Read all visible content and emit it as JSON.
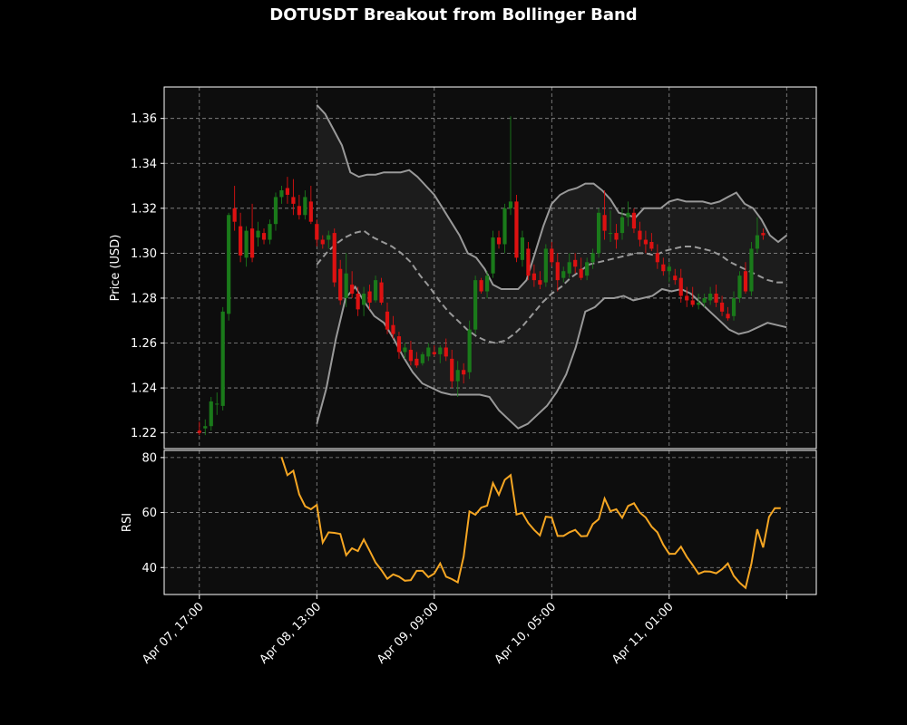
{
  "chart_data": {
    "type": "candlestick",
    "title": "DOTUSDT Breakout from Bollinger Band",
    "theme": {
      "background": "#000000",
      "panel": "#0d0d0d",
      "grid": "#bbbbbb",
      "up": "#1a7a1a",
      "down": "#dd1111",
      "band": "#999999",
      "rsi": "#f5a623"
    },
    "price_panel": {
      "ylabel": "Price (USD)",
      "ylim": [
        1.213,
        1.374
      ],
      "yticks": [
        "1.22",
        "1.24",
        "1.26",
        "1.28",
        "1.30",
        "1.32",
        "1.34",
        "1.36"
      ],
      "candles": [
        [
          1.221,
          1.225,
          1.219,
          1.22
        ],
        [
          1.222,
          1.226,
          1.219,
          1.223
        ],
        [
          1.223,
          1.236,
          1.221,
          1.234
        ],
        [
          1.233,
          1.238,
          1.228,
          1.233
        ],
        [
          1.232,
          1.276,
          1.23,
          1.274
        ],
        [
          1.273,
          1.318,
          1.27,
          1.317
        ],
        [
          1.32,
          1.33,
          1.31,
          1.314
        ],
        [
          1.312,
          1.318,
          1.296,
          1.299
        ],
        [
          1.298,
          1.312,
          1.294,
          1.31
        ],
        [
          1.311,
          1.322,
          1.296,
          1.298
        ],
        [
          1.307,
          1.314,
          1.303,
          1.31
        ],
        [
          1.309,
          1.311,
          1.304,
          1.306
        ],
        [
          1.306,
          1.315,
          1.304,
          1.313
        ],
        [
          1.313,
          1.327,
          1.31,
          1.325
        ],
        [
          1.325,
          1.33,
          1.322,
          1.328
        ],
        [
          1.329,
          1.334,
          1.322,
          1.326
        ],
        [
          1.325,
          1.333,
          1.317,
          1.322
        ],
        [
          1.321,
          1.326,
          1.315,
          1.317
        ],
        [
          1.317,
          1.328,
          1.315,
          1.325
        ],
        [
          1.323,
          1.33,
          1.313,
          1.314
        ],
        [
          1.313,
          1.315,
          1.303,
          1.306
        ],
        [
          1.306,
          1.308,
          1.302,
          1.304
        ],
        [
          1.306,
          1.31,
          1.302,
          1.308
        ],
        [
          1.309,
          1.311,
          1.285,
          1.287
        ],
        [
          1.293,
          1.297,
          1.277,
          1.279
        ],
        [
          1.28,
          1.3,
          1.276,
          1.291
        ],
        [
          1.286,
          1.292,
          1.28,
          1.282
        ],
        [
          1.282,
          1.285,
          1.272,
          1.275
        ],
        [
          1.277,
          1.285,
          1.272,
          1.282
        ],
        [
          1.283,
          1.286,
          1.275,
          1.278
        ],
        [
          1.279,
          1.29,
          1.278,
          1.288
        ],
        [
          1.287,
          1.289,
          1.277,
          1.278
        ],
        [
          1.274,
          1.278,
          1.264,
          1.266
        ],
        [
          1.268,
          1.272,
          1.262,
          1.264
        ],
        [
          1.263,
          1.265,
          1.253,
          1.256
        ],
        [
          1.256,
          1.26,
          1.253,
          1.258
        ],
        [
          1.257,
          1.261,
          1.25,
          1.252
        ],
        [
          1.253,
          1.256,
          1.249,
          1.25
        ],
        [
          1.251,
          1.256,
          1.25,
          1.255
        ],
        [
          1.254,
          1.26,
          1.252,
          1.258
        ],
        [
          1.256,
          1.259,
          1.254,
          1.255
        ],
        [
          1.255,
          1.259,
          1.251,
          1.258
        ],
        [
          1.258,
          1.262,
          1.252,
          1.254
        ],
        [
          1.253,
          1.257,
          1.24,
          1.243
        ],
        [
          1.243,
          1.252,
          1.236,
          1.248
        ],
        [
          1.248,
          1.251,
          1.242,
          1.246
        ],
        [
          1.247,
          1.27,
          1.244,
          1.266
        ],
        [
          1.266,
          1.29,
          1.264,
          1.288
        ],
        [
          1.288,
          1.289,
          1.282,
          1.283
        ],
        [
          1.283,
          1.292,
          1.28,
          1.29
        ],
        [
          1.291,
          1.31,
          1.289,
          1.307
        ],
        [
          1.307,
          1.31,
          1.302,
          1.304
        ],
        [
          1.304,
          1.322,
          1.3,
          1.32
        ],
        [
          1.32,
          1.361,
          1.317,
          1.323
        ],
        [
          1.323,
          1.326,
          1.296,
          1.298
        ],
        [
          1.297,
          1.31,
          1.294,
          1.307
        ],
        [
          1.302,
          1.305,
          1.288,
          1.29
        ],
        [
          1.291,
          1.295,
          1.285,
          1.288
        ],
        [
          1.288,
          1.292,
          1.284,
          1.286
        ],
        [
          1.287,
          1.304,
          1.285,
          1.302
        ],
        [
          1.302,
          1.305,
          1.294,
          1.296
        ],
        [
          1.296,
          1.3,
          1.283,
          1.288
        ],
        [
          1.289,
          1.294,
          1.287,
          1.292
        ],
        [
          1.291,
          1.3,
          1.289,
          1.296
        ],
        [
          1.297,
          1.3,
          1.291,
          1.294
        ],
        [
          1.293,
          1.298,
          1.288,
          1.289
        ],
        [
          1.29,
          1.298,
          1.288,
          1.296
        ],
        [
          1.296,
          1.302,
          1.293,
          1.3
        ],
        [
          1.3,
          1.32,
          1.298,
          1.318
        ],
        [
          1.317,
          1.328,
          1.306,
          1.31
        ],
        [
          1.309,
          1.319,
          1.305,
          1.309
        ],
        [
          1.309,
          1.313,
          1.302,
          1.306
        ],
        [
          1.309,
          1.32,
          1.306,
          1.316
        ],
        [
          1.316,
          1.323,
          1.312,
          1.318
        ],
        [
          1.318,
          1.32,
          1.309,
          1.311
        ],
        [
          1.31,
          1.314,
          1.303,
          1.306
        ],
        [
          1.306,
          1.31,
          1.3,
          1.304
        ],
        [
          1.305,
          1.309,
          1.301,
          1.302
        ],
        [
          1.3,
          1.304,
          1.293,
          1.296
        ],
        [
          1.295,
          1.298,
          1.29,
          1.292
        ],
        [
          1.292,
          1.296,
          1.287,
          1.294
        ],
        [
          1.29,
          1.293,
          1.286,
          1.288
        ],
        [
          1.289,
          1.293,
          1.278,
          1.281
        ],
        [
          1.281,
          1.285,
          1.276,
          1.279
        ],
        [
          1.279,
          1.285,
          1.276,
          1.277
        ],
        [
          1.277,
          1.282,
          1.275,
          1.278
        ],
        [
          1.278,
          1.282,
          1.276,
          1.28
        ],
        [
          1.279,
          1.285,
          1.277,
          1.282
        ],
        [
          1.282,
          1.286,
          1.276,
          1.278
        ],
        [
          1.278,
          1.281,
          1.272,
          1.274
        ],
        [
          1.273,
          1.276,
          1.27,
          1.271
        ],
        [
          1.272,
          1.283,
          1.27,
          1.28
        ],
        [
          1.28,
          1.292,
          1.278,
          1.29
        ],
        [
          1.292,
          1.296,
          1.282,
          1.283
        ],
        [
          1.283,
          1.305,
          1.281,
          1.302
        ],
        [
          1.302,
          1.316,
          1.3,
          1.308
        ],
        [
          1.309,
          1.311,
          1.306,
          1.308
        ]
      ],
      "bb_upper": [
        1.366,
        1.362,
        1.355,
        1.348,
        1.336,
        1.334,
        1.335,
        1.335,
        1.336,
        1.336,
        1.336,
        1.337,
        1.334,
        1.33,
        1.326,
        1.32,
        1.314,
        1.308,
        1.3,
        1.298,
        1.293,
        1.286,
        1.284,
        1.284,
        1.284,
        1.288,
        1.3,
        1.312,
        1.322,
        1.326,
        1.328,
        1.329,
        1.331,
        1.331,
        1.328,
        1.324,
        1.318,
        1.317,
        1.316,
        1.32,
        1.32,
        1.32,
        1.323,
        1.324,
        1.323,
        1.323,
        1.323,
        1.322,
        1.323,
        1.325,
        1.327,
        1.322,
        1.32,
        1.315,
        1.308,
        1.305,
        1.308
      ],
      "bb_mid": [
        1.295,
        1.3,
        1.304,
        1.307,
        1.309,
        1.31,
        1.307,
        1.305,
        1.303,
        1.3,
        1.296,
        1.29,
        1.285,
        1.279,
        1.274,
        1.27,
        1.266,
        1.263,
        1.261,
        1.26,
        1.261,
        1.264,
        1.268,
        1.273,
        1.278,
        1.282,
        1.285,
        1.289,
        1.292,
        1.295,
        1.296,
        1.297,
        1.298,
        1.299,
        1.3,
        1.3,
        1.299,
        1.301,
        1.302,
        1.303,
        1.303,
        1.302,
        1.301,
        1.299,
        1.296,
        1.294,
        1.292,
        1.29,
        1.288,
        1.287,
        1.287
      ],
      "bb_lower": [
        1.224,
        1.24,
        1.262,
        1.28,
        1.285,
        1.278,
        1.272,
        1.269,
        1.262,
        1.254,
        1.247,
        1.242,
        1.24,
        1.238,
        1.237,
        1.237,
        1.237,
        1.237,
        1.236,
        1.23,
        1.226,
        1.222,
        1.224,
        1.228,
        1.232,
        1.238,
        1.246,
        1.258,
        1.274,
        1.276,
        1.28,
        1.28,
        1.281,
        1.279,
        1.28,
        1.281,
        1.284,
        1.283,
        1.284,
        1.282,
        1.278,
        1.274,
        1.27,
        1.266,
        1.264,
        1.265,
        1.267,
        1.269,
        1.268,
        1.267
      ]
    },
    "rsi_panel": {
      "ylabel": "RSI",
      "ylim": [
        30.2,
        82.6
      ],
      "yticks": [
        "40",
        "60",
        "80"
      ],
      "rsi": [
        80.2,
        73.6,
        75.2,
        66.6,
        62.3,
        61.2,
        62.8,
        49.1,
        52.8,
        52.6,
        52.2,
        44.5,
        47.0,
        46.0,
        50.2,
        46.1,
        41.8,
        39.1,
        35.9,
        37.5,
        36.7,
        35.2,
        35.4,
        38.8,
        38.8,
        36.5,
        37.8,
        41.5,
        36.7,
        35.8,
        34.6,
        44.0,
        60.4,
        59.2,
        61.8,
        62.5,
        70.7,
        66.5,
        71.9,
        73.6,
        59.3,
        59.9,
        56.2,
        53.7,
        51.7,
        58.5,
        58.2,
        51.5,
        51.5,
        52.8,
        53.7,
        51.4,
        51.5,
        55.8,
        57.6,
        65.1,
        60.5,
        61.2,
        58.1,
        62.4,
        63.4,
        60.0,
        58.2,
        54.9,
        52.8,
        48.3,
        45.0,
        45.0,
        47.6,
        43.9,
        40.9,
        37.7,
        38.6,
        38.5,
        37.9,
        39.4,
        41.5,
        37.0,
        34.5,
        32.6,
        41.5,
        53.9,
        47.3,
        58.4,
        61.6,
        61.6
      ]
    },
    "x_axis": {
      "tick_labels": [
        "Apr 07, 17:00",
        "Apr 08, 13:00",
        "Apr 09, 09:00",
        "Apr 10, 05:00",
        "Apr 11, 01:00",
        ""
      ],
      "tick_candle_index": [
        0,
        20,
        40,
        60,
        80,
        100
      ]
    },
    "grid": true
  }
}
